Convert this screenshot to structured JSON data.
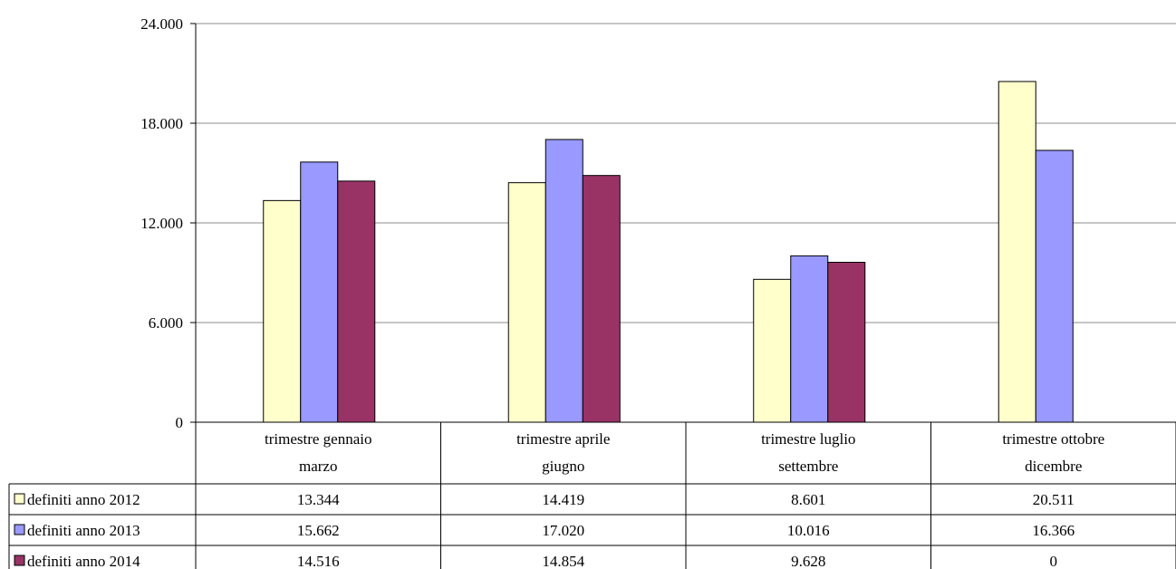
{
  "chart_data": {
    "type": "bar",
    "categories": [
      [
        "trimestre gennaio",
        "marzo"
      ],
      [
        "trimestre aprile",
        "giugno"
      ],
      [
        "trimestre luglio",
        "settembre"
      ],
      [
        "trimestre ottobre",
        "dicembre"
      ]
    ],
    "yticks": [
      "0",
      "6.000",
      "12.000",
      "18.000",
      "24.000"
    ],
    "ylim": [
      0,
      24000
    ],
    "grid": true,
    "legend_placement": "table below chart",
    "series": [
      {
        "name": "definiti anno 2012",
        "color": "#ffffcc",
        "values": [
          13344,
          14419,
          8601,
          20511
        ],
        "labels": [
          "13.344",
          "14.419",
          "8.601",
          "20.511"
        ]
      },
      {
        "name": "definiti anno 2013",
        "color": "#9999ff",
        "values": [
          15662,
          17020,
          10016,
          16366
        ],
        "labels": [
          "15.662",
          "17.020",
          "10.016",
          "16.366"
        ]
      },
      {
        "name": "definiti anno 2014",
        "color": "#993366",
        "values": [
          14516,
          14854,
          9628,
          0
        ],
        "labels": [
          "14.516",
          "14.854",
          "9.628",
          "0"
        ]
      }
    ]
  }
}
